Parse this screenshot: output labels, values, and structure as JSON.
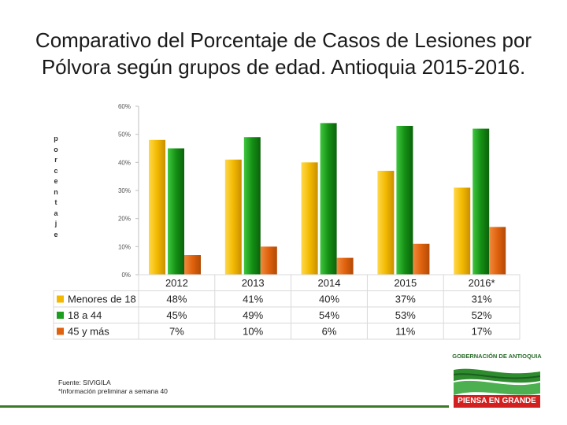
{
  "title": "Comparativo del Porcentaje de Casos de Lesiones por Pólvora según grupos de edad. Antioquia 2015-2016.",
  "colors": {
    "series1": "#f2b900",
    "series2": "#1e9e1e",
    "series3": "#e0620e",
    "axis": "#bfbfbf",
    "grid": "#d9d9d9"
  },
  "chart_data": {
    "type": "bar",
    "title": "Comparativo del Porcentaje de Casos de Lesiones por Pólvora según grupos de edad. Antioquia 2015-2016.",
    "ylabel": "Porcentaje",
    "xlabel": "",
    "ylim": [
      0,
      60
    ],
    "yticks": [
      "0%",
      "10%",
      "20%",
      "30%",
      "40%",
      "50%",
      "60%"
    ],
    "categories": [
      "2012",
      "2013",
      "2014",
      "2015",
      "2016*"
    ],
    "series": [
      {
        "name": "Menores de 18",
        "values": [
          48,
          41,
          40,
          37,
          31
        ],
        "labels": [
          "48%",
          "41%",
          "40%",
          "37%",
          "31%"
        ]
      },
      {
        "name": "18 a 44",
        "values": [
          45,
          49,
          54,
          53,
          52
        ],
        "labels": [
          "45%",
          "49%",
          "54%",
          "53%",
          "52%"
        ]
      },
      {
        "name": "45 y más",
        "values": [
          7,
          10,
          6,
          11,
          17
        ],
        "labels": [
          "7%",
          "10%",
          "6%",
          "11%",
          "17%"
        ]
      }
    ],
    "legend": "data-table"
  },
  "source": {
    "line1": "Fuente: SIVIGILA",
    "line2": "*Información preliminar a semana 40"
  },
  "logo": {
    "top_text": "GOBERNACIÓN DE ANTIOQUIA",
    "slogan": "PIENSA EN GRANDE"
  }
}
